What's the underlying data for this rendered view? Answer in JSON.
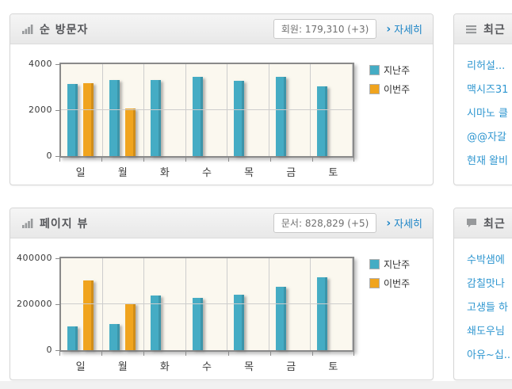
{
  "colors": {
    "accent_teal": "#45ACC4",
    "accent_orange": "#F0A41E",
    "link_blue": "#1B84C6",
    "list_link_blue": "#2E96D0",
    "plot_background": "#FBF8EF"
  },
  "icons": {
    "visitors_header": "bar-chart-icon",
    "pageviews_header": "bar-chart-icon",
    "recent_posts_header": "list-icon",
    "recent_comments_header": "comment-icon",
    "more": "chevron-right-icon"
  },
  "panels": {
    "visitors": {
      "title": "순 방문자",
      "badge": "회원: 179,310 (+3)",
      "chevron": "›",
      "more_label": "자세히"
    },
    "pageviews": {
      "title": "페이지 뷰",
      "badge": "문서: 828,829 (+5)",
      "chevron": "›",
      "more_label": "자세히"
    },
    "recent_posts": {
      "title": "최근",
      "items": [
        "리허설...",
        "맥시즈31",
        "시마노 클",
        "@@자갈",
        "현재 왈비"
      ]
    },
    "recent_comments": {
      "title": "최근",
      "items": [
        "수박샘에",
        "감칠맛나",
        "고생들 하",
        "쇄도우님",
        "아유~십.."
      ]
    }
  },
  "chart_data": [
    {
      "type": "bar",
      "title": "순 방문자",
      "categories": [
        "일",
        "월",
        "화",
        "수",
        "목",
        "금",
        "토"
      ],
      "series": [
        {
          "name": "지난주",
          "color": "#45ACC4",
          "values": [
            3150,
            3300,
            3320,
            3440,
            3280,
            3440,
            3020
          ]
        },
        {
          "name": "이번주",
          "color": "#F0A41E",
          "values": [
            3170,
            2080,
            null,
            null,
            null,
            null,
            null
          ]
        }
      ],
      "ylim": [
        0,
        4000
      ],
      "yticks": [
        0,
        2000,
        4000
      ],
      "xlabel": "",
      "ylabel": "",
      "grid": true,
      "legend_position": "right"
    },
    {
      "type": "bar",
      "title": "페이지 뷰",
      "categories": [
        "일",
        "월",
        "화",
        "수",
        "목",
        "금",
        "토"
      ],
      "series": [
        {
          "name": "지난주",
          "color": "#45ACC4",
          "values": [
            105000,
            113000,
            238000,
            229000,
            243000,
            277000,
            317000
          ]
        },
        {
          "name": "이번주",
          "color": "#F0A41E",
          "values": [
            303000,
            205000,
            null,
            null,
            null,
            null,
            null
          ]
        }
      ],
      "ylim": [
        0,
        400000
      ],
      "yticks": [
        0,
        200000,
        400000
      ],
      "xlabel": "",
      "ylabel": "",
      "grid": true,
      "legend_position": "right"
    }
  ]
}
